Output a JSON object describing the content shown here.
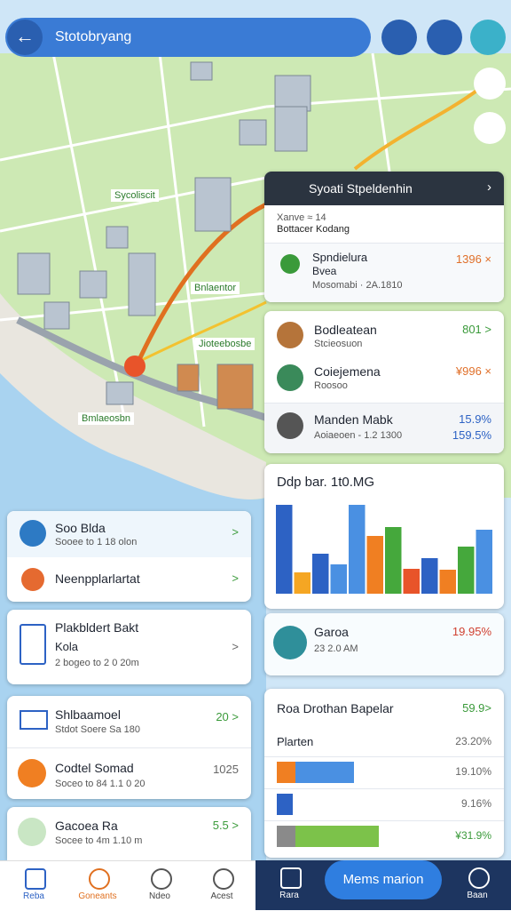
{
  "header": {
    "title": "Stotobryang"
  },
  "map_labels": [
    "Sycoliscit",
    "Bnlaentor",
    "Jioteebosbe",
    "Bmlaeosbn"
  ],
  "route_card": {
    "header": "Syoati Stpeldenhin",
    "sub_title": "Xanve ≈ 14",
    "sub_text": "Bottacer Kodang",
    "item": {
      "title": "Spndielura",
      "line2": "Bvea",
      "meta": "Mosomabi · 2A.1810",
      "value": "1396 ×"
    }
  },
  "places_card": {
    "items": [
      {
        "title": "Bodleatean",
        "sub": "Stcieosuon",
        "value": "801 >"
      },
      {
        "title": "Coiejemena",
        "sub": "Roosoo",
        "value": "¥996 ×"
      },
      {
        "title": "Manden Mabk",
        "sub": "Aoiaeoen - 1.2 1300",
        "value": "15.9%",
        "value2": "159.5%"
      }
    ]
  },
  "chart": {
    "type": "bar",
    "title": "Ddp bar. 1t0.MG",
    "ylim": [
      0,
      100
    ],
    "values": [
      100,
      24,
      45,
      33,
      100,
      65,
      75,
      28,
      40,
      27,
      53,
      72
    ],
    "colors": [
      "#2d62c4",
      "#f5a623",
      "#2d62c4",
      "#4a90e2",
      "#4a90e2",
      "#f07f22",
      "#45a83c",
      "#e8542a",
      "#2d62c4",
      "#f07f22",
      "#45a83c",
      "#4a90e2"
    ]
  },
  "weather_card": {
    "title": "Garoa",
    "sub": "23 2.0 AM",
    "value": "19.95%"
  },
  "stats_card": {
    "title": "Roa Drothan Bapelar",
    "title_value": "59.9>",
    "label": "Plarten",
    "label_value": "23.20%",
    "rows": [
      {
        "values": [
          9,
          29
        ],
        "colors": [
          "#f07f22",
          "#4a90e2"
        ],
        "label": "19.10%"
      },
      {
        "values": [
          8
        ],
        "colors": [
          "#2d62c4"
        ],
        "label": "9.16%"
      },
      {
        "values": [
          9,
          41
        ],
        "colors": [
          "#8a8a8a",
          "#7cc24a"
        ],
        "label": "¥31.9%"
      }
    ]
  },
  "left_cards": [
    {
      "title": "Soo Blda",
      "sub": "Sooee to 1 18 olon",
      "value": ">"
    },
    {
      "title": "Neenpplarlartat",
      "value": ">"
    },
    {
      "title": "Plakbldert Bakt",
      "line2": "Kola",
      "sub": "2 bogeo to 2 0 20m",
      "value": ">"
    },
    {
      "title": "Shlbaamoel",
      "sub": "Stdot Soere Sa 180",
      "value": "20 >"
    },
    {
      "title": "Codtel Somad",
      "sub": "Soceo to 84 1.1 0 20",
      "value": "1025"
    },
    {
      "title": "Gacoea Ra",
      "sub": "Socee to 4m 1.10 m",
      "value": "5.5 >"
    }
  ],
  "nav": {
    "items": [
      "Reba",
      "Goneants",
      "Ndeo",
      "Acest"
    ],
    "right_left": "Rara",
    "button": "Mems marion",
    "right_right": "Baan"
  }
}
